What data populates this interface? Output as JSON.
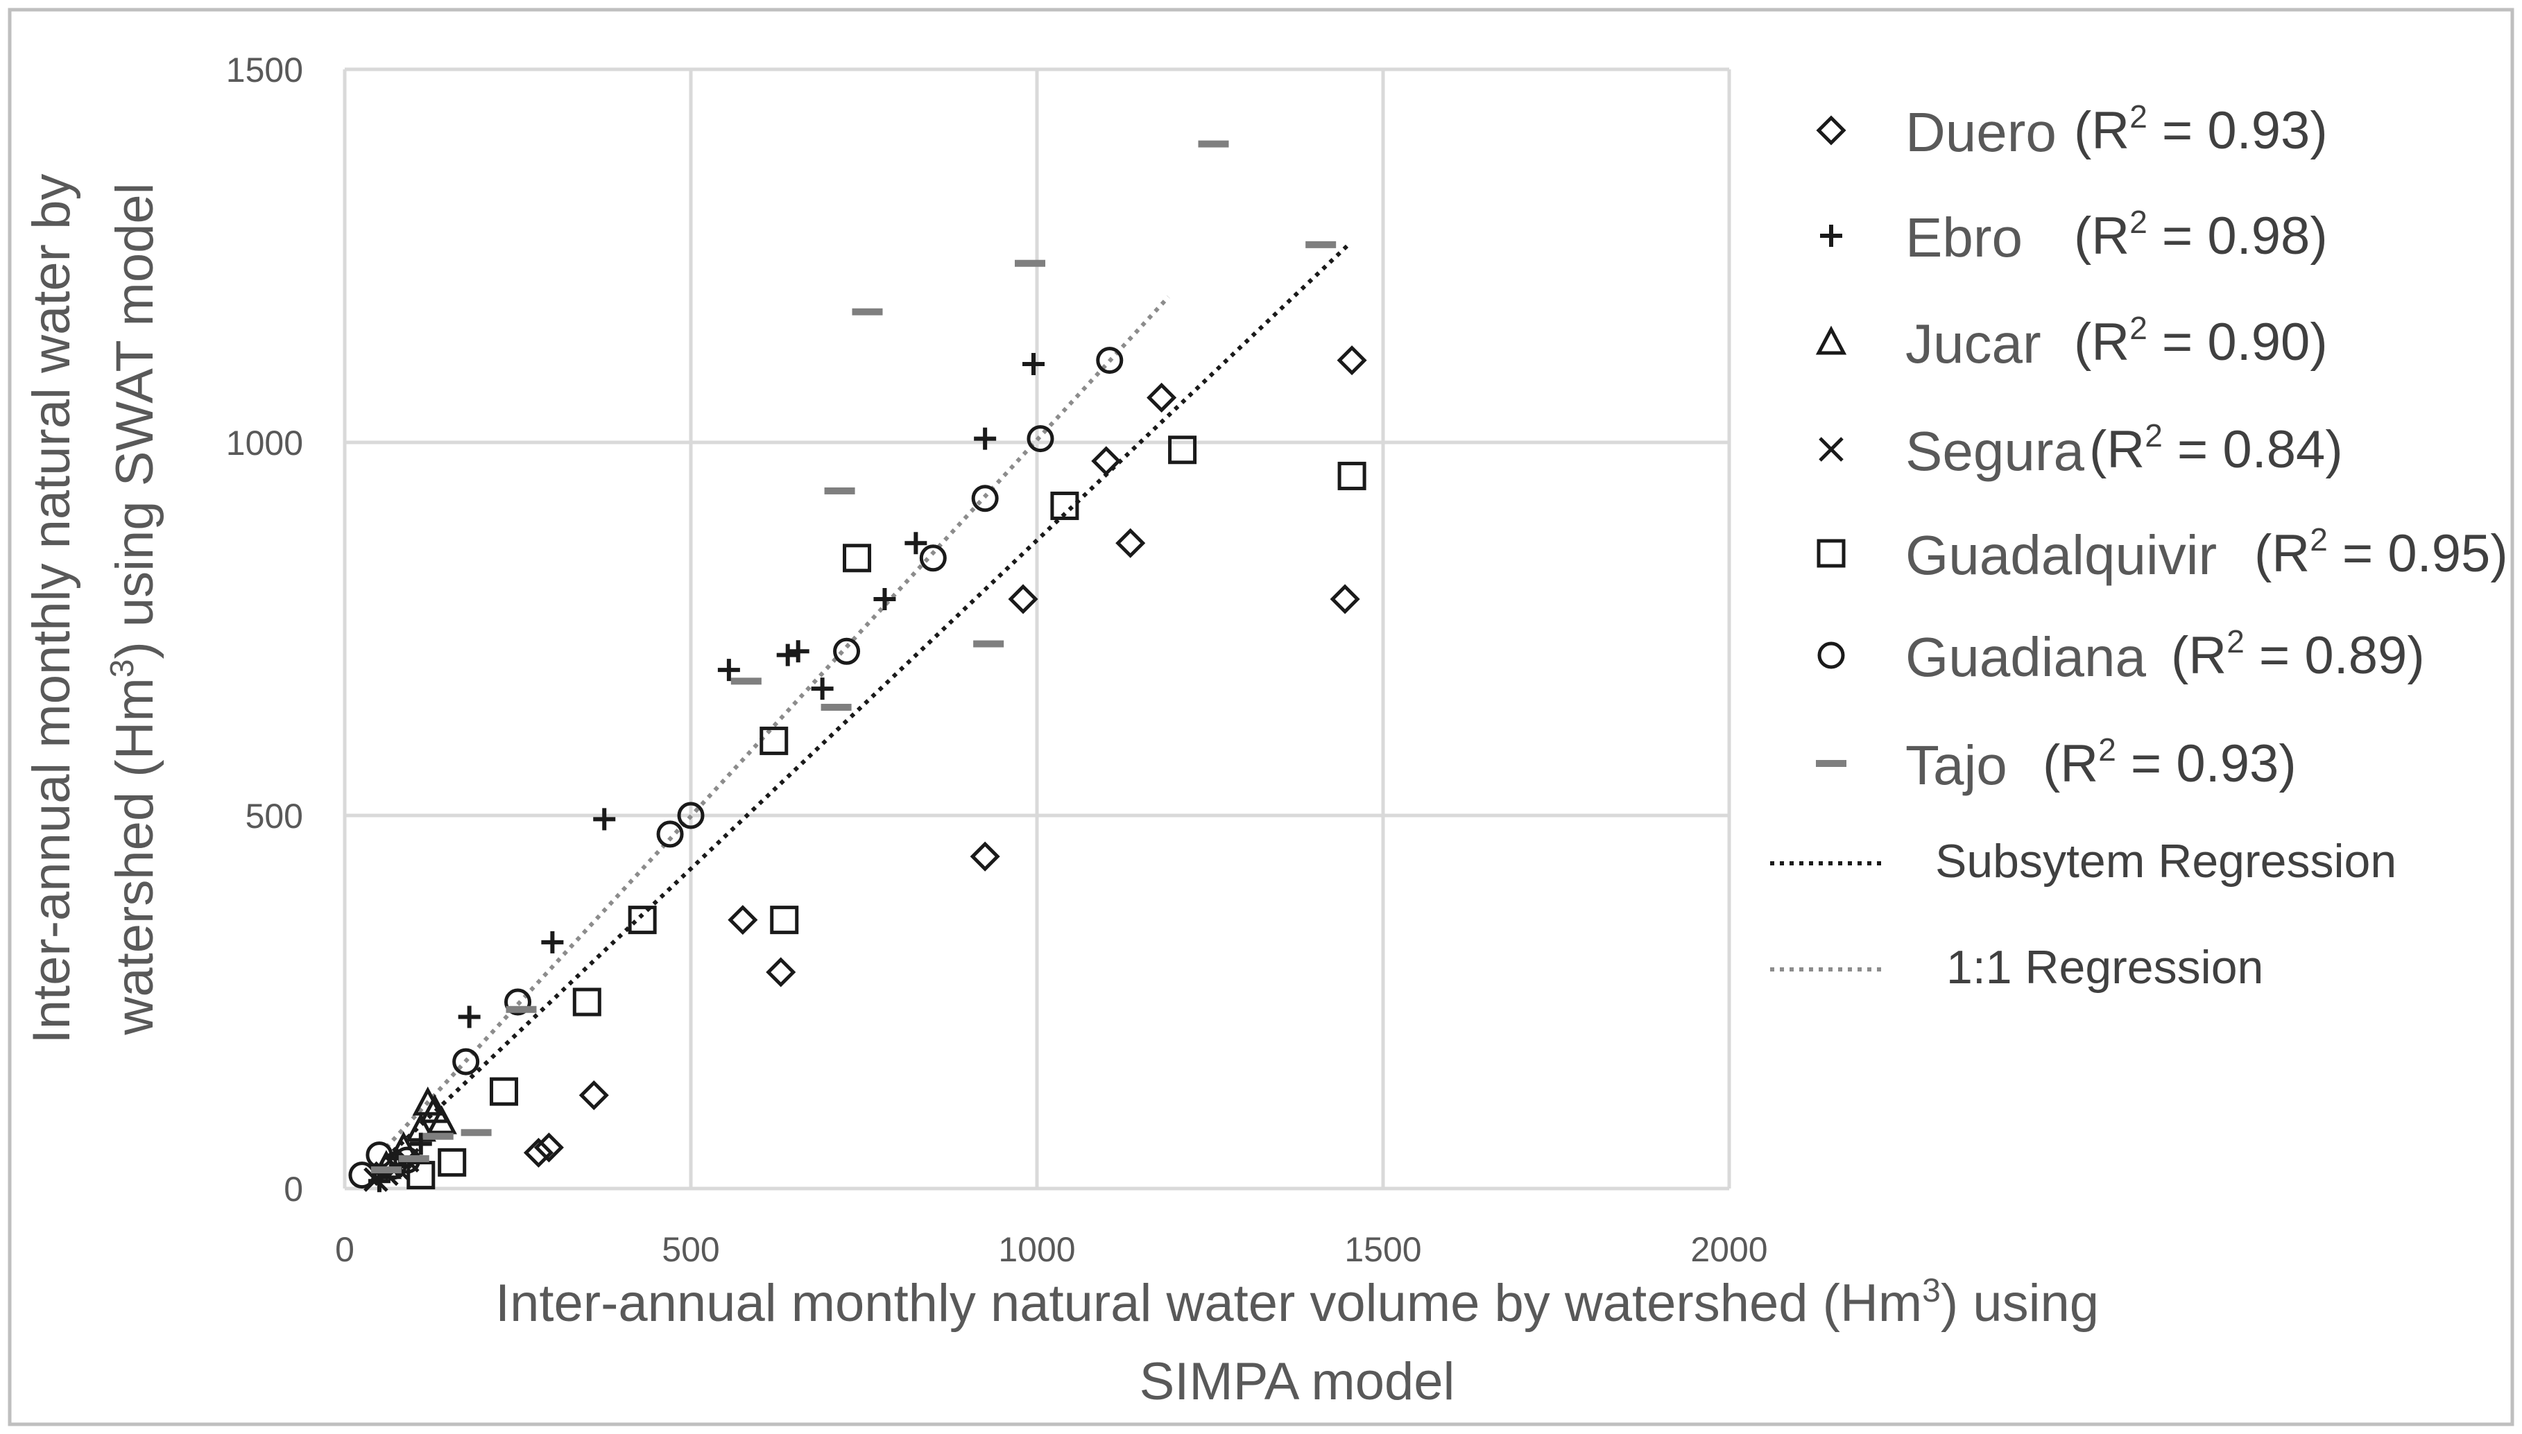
{
  "chart_data": {
    "type": "scatter",
    "xlabel_line1": "Inter-annual monthly natural water volume by watershed (Hm",
    "xlabel_sup": "3",
    "xlabel_line1_end": ") using",
    "xlabel_line2": "SIMPA model",
    "ylabel_line1": "Inter-annual monthly natural water by",
    "ylabel_line2_start": "watershed (Hm",
    "ylabel_sup": "3",
    "ylabel_line2_end": ") using SWAT model",
    "xlim": [
      0,
      2000
    ],
    "ylim": [
      0,
      1500
    ],
    "xticks": [
      0,
      500,
      1000,
      1500,
      2000
    ],
    "yticks": [
      0,
      500,
      1000,
      1500
    ],
    "xtick_labels": [
      "0",
      "500",
      "1000",
      "1500",
      "2000"
    ],
    "ytick_labels": [
      "0",
      "500",
      "1000",
      "1500"
    ],
    "grid": true,
    "legend_position": "right",
    "series": [
      {
        "name": "Duero",
        "r2_label": "(R",
        "r2_sup": "2",
        "r2_value": " = 0.93)",
        "marker": "diamond",
        "x": [
          280,
          295,
          360,
          575,
          630,
          925,
          980,
          1100,
          1135,
          1180,
          1445,
          1455
        ],
        "y": [
          48,
          55,
          125,
          360,
          290,
          445,
          790,
          975,
          865,
          1060,
          790,
          1110
        ]
      },
      {
        "name": "Ebro",
        "r2_label": "(R",
        "r2_sup": "2",
        "r2_value": " = 0.98)",
        "marker": "plus",
        "x": [
          50,
          80,
          110,
          180,
          300,
          375,
          555,
          640,
          655,
          690,
          780,
          825,
          925,
          995
        ],
        "y": [
          10,
          30,
          60,
          230,
          330,
          495,
          695,
          715,
          720,
          670,
          790,
          865,
          1005,
          1105
        ]
      },
      {
        "name": "Jucar",
        "r2_label": "(R",
        "r2_sup": "2",
        "r2_value": " = 0.90)",
        "marker": "triangle",
        "x": [
          60,
          85,
          110,
          120,
          130,
          140
        ],
        "y": [
          30,
          55,
          80,
          115,
          105,
          90
        ]
      },
      {
        "name": "Segura",
        "r2_label": "(R",
        "r2_sup": "2",
        "r2_value": " = 0.84)",
        "marker": "cross",
        "x": [
          45,
          60,
          75,
          90
        ],
        "y": [
          12,
          20,
          28,
          38
        ]
      },
      {
        "name": "Guadalquivir",
        "r2_label": "(R",
        "r2_sup": "2",
        "r2_value": " = 0.95)",
        "marker": "square",
        "x": [
          110,
          155,
          230,
          350,
          430,
          620,
          635,
          740,
          1040,
          1210,
          1455
        ],
        "y": [
          18,
          35,
          130,
          250,
          360,
          600,
          360,
          845,
          915,
          990,
          955
        ]
      },
      {
        "name": "Guadiana",
        "r2_label": "(R",
        "r2_sup": "2",
        "r2_value": " = 0.89)",
        "marker": "circle",
        "x": [
          25,
          50,
          70,
          90,
          175,
          250,
          470,
          500,
          725,
          850,
          925,
          1005,
          1105
        ],
        "y": [
          18,
          45,
          30,
          38,
          170,
          250,
          475,
          500,
          720,
          845,
          925,
          1005,
          1110
        ]
      },
      {
        "name": "Tajo",
        "r2_label": "(R",
        "r2_sup": "2",
        "r2_value": " = 0.93)",
        "marker": "dash",
        "x": [
          60,
          100,
          135,
          190,
          255,
          580,
          710,
          715,
          755,
          930,
          990,
          1255,
          1410
        ],
        "y": [
          25,
          40,
          70,
          75,
          240,
          680,
          645,
          935,
          1175,
          730,
          1240,
          1400,
          1265
        ]
      }
    ],
    "lines": [
      {
        "name": "Subsytem Regression",
        "style": "dotted",
        "color": "#1a1a1a",
        "x": [
          70,
          1450
        ],
        "y": [
          50,
          1265
        ]
      },
      {
        "name": "1:1 Regression",
        "style": "dotted",
        "color": "#8c8c8c",
        "x": [
          60,
          1190
        ],
        "y": [
          55,
          1195
        ]
      }
    ],
    "colors": {
      "marker": "#1a1a1a",
      "tajo": "#7f7f7f",
      "grid": "#d9d9d9",
      "text": "#595959",
      "frame": "#bfbfbf"
    }
  }
}
